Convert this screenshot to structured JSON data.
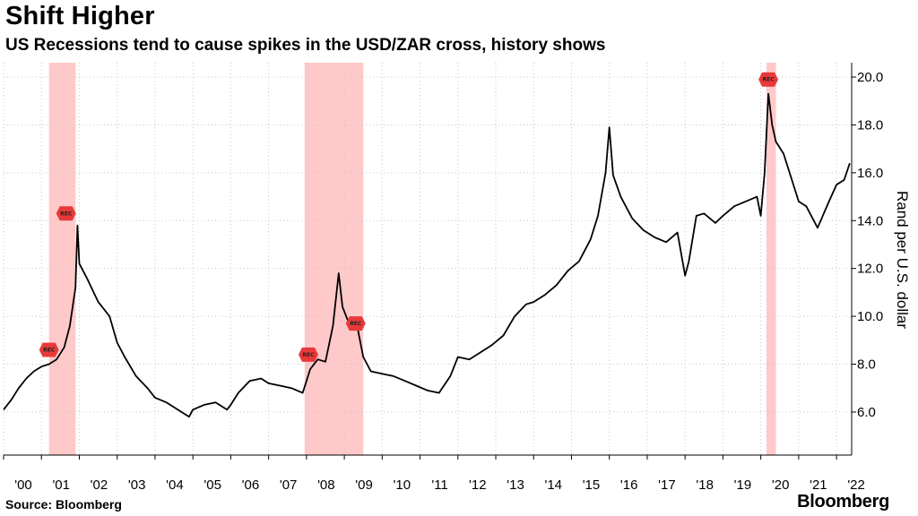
{
  "header": {
    "title": "Shift Higher",
    "subtitle": "US Recessions tend to cause spikes in the USD/ZAR cross, history shows"
  },
  "footer": {
    "source": "Source: Bloomberg",
    "brand": "Bloomberg"
  },
  "colors": {
    "line": "#000000",
    "recession_band": "#ff9c9c",
    "marker": "#e8393a",
    "grid": "#c8c8c8"
  },
  "chart_data": {
    "type": "line",
    "title": "Shift Higher",
    "subtitle": "US Recessions tend to cause spikes in the USD/ZAR cross, history shows",
    "ylabel": "Rand per U.S. dollar",
    "xlabel": "",
    "xlim": [
      2000.0,
      2022.4
    ],
    "ylim": [
      4.2,
      20.6
    ],
    "y_ticks": [
      6.0,
      8.0,
      10.0,
      12.0,
      14.0,
      16.0,
      18.0,
      20.0
    ],
    "y_tick_labels": [
      "6.0",
      "8.0",
      "10.0",
      "12.0",
      "14.0",
      "16.0",
      "18.0",
      "20.0"
    ],
    "x_ticks": [
      2000,
      2001,
      2002,
      2003,
      2004,
      2005,
      2006,
      2007,
      2008,
      2009,
      2010,
      2011,
      2012,
      2013,
      2014,
      2015,
      2016,
      2017,
      2018,
      2019,
      2020,
      2021,
      2022
    ],
    "x_tick_labels": [
      "'00",
      "'01",
      "'02",
      "'03",
      "'04",
      "'05",
      "'06",
      "'07",
      "'08",
      "'09",
      "'10",
      "'11",
      "'12",
      "'13",
      "'14",
      "'15",
      "'16",
      "'17",
      "'18",
      "'19",
      "'20",
      "'21",
      "'22"
    ],
    "grid": true,
    "legend": "none",
    "recession_bands": [
      {
        "start": 2001.2,
        "end": 2001.9
      },
      {
        "start": 2007.95,
        "end": 2009.5
      },
      {
        "start": 2020.15,
        "end": 2020.4
      }
    ],
    "markers": [
      {
        "label": "REC",
        "x": 2001.2,
        "y": 8.6
      },
      {
        "label": "REC",
        "x": 2001.65,
        "y": 14.3
      },
      {
        "label": "REC",
        "x": 2008.05,
        "y": 8.4
      },
      {
        "label": "REC",
        "x": 2009.3,
        "y": 9.7
      },
      {
        "label": "REC",
        "x": 2020.2,
        "y": 19.9
      }
    ],
    "series": [
      {
        "x": [
          2000.0,
          2000.2,
          2000.4,
          2000.6,
          2000.8,
          2001.0,
          2001.2,
          2001.4,
          2001.6,
          2001.75,
          2001.9,
          2001.95,
          2002.0,
          2002.2,
          2002.5,
          2002.8,
          2003.0,
          2003.2,
          2003.5,
          2003.8,
          2004.0,
          2004.3,
          2004.6,
          2004.9,
          2005.0,
          2005.3,
          2005.6,
          2005.9,
          2006.0,
          2006.2,
          2006.5,
          2006.8,
          2007.0,
          2007.3,
          2007.6,
          2007.9,
          2008.0,
          2008.1,
          2008.3,
          2008.5,
          2008.7,
          2008.85,
          2008.95,
          2009.1,
          2009.3,
          2009.5,
          2009.7,
          2010.0,
          2010.3,
          2010.6,
          2010.9,
          2011.2,
          2011.5,
          2011.8,
          2012.0,
          2012.3,
          2012.6,
          2012.9,
          2013.2,
          2013.5,
          2013.8,
          2014.0,
          2014.3,
          2014.6,
          2014.9,
          2015.2,
          2015.5,
          2015.7,
          2015.9,
          2016.0,
          2016.1,
          2016.3,
          2016.6,
          2016.9,
          2017.2,
          2017.5,
          2017.8,
          2018.0,
          2018.1,
          2018.3,
          2018.5,
          2018.8,
          2019.0,
          2019.3,
          2019.6,
          2019.9,
          2020.0,
          2020.1,
          2020.2,
          2020.3,
          2020.4,
          2020.6,
          2020.9,
          2021.0,
          2021.2,
          2021.5,
          2021.8,
          2022.0,
          2022.2,
          2022.35
        ],
        "values": [
          6.1,
          6.5,
          7.0,
          7.4,
          7.7,
          7.9,
          8.0,
          8.2,
          8.7,
          9.6,
          11.2,
          13.8,
          12.2,
          11.6,
          10.6,
          10.0,
          8.9,
          8.3,
          7.5,
          7.0,
          6.6,
          6.4,
          6.1,
          5.8,
          6.1,
          6.3,
          6.4,
          6.1,
          6.3,
          6.8,
          7.3,
          7.4,
          7.2,
          7.1,
          7.0,
          6.8,
          7.3,
          7.8,
          8.2,
          8.1,
          9.6,
          11.8,
          10.4,
          9.8,
          9.9,
          8.3,
          7.7,
          7.6,
          7.5,
          7.3,
          7.1,
          6.9,
          6.8,
          7.5,
          8.3,
          8.2,
          8.5,
          8.8,
          9.2,
          10.0,
          10.5,
          10.6,
          10.9,
          11.3,
          11.9,
          12.3,
          13.2,
          14.2,
          16.0,
          17.9,
          15.9,
          15.0,
          14.1,
          13.6,
          13.3,
          13.1,
          13.5,
          11.7,
          12.3,
          14.2,
          14.3,
          13.9,
          14.2,
          14.6,
          14.8,
          15.0,
          14.2,
          16.0,
          19.3,
          18.0,
          17.3,
          16.8,
          15.3,
          14.8,
          14.6,
          13.7,
          14.8,
          15.5,
          15.7,
          16.4
        ]
      }
    ]
  }
}
